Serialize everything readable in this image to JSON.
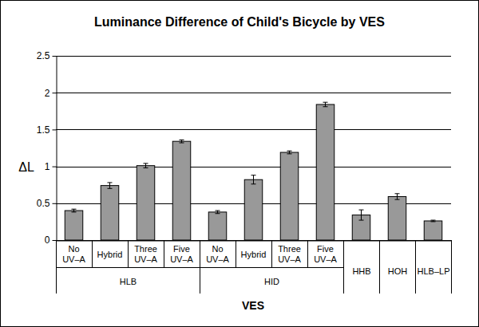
{
  "chart_data": {
    "type": "bar",
    "title": "Luminance Difference of Child's Bicycle by VES",
    "x_label": "VES",
    "y_label": "ΔL",
    "categories": [
      "No UV–A",
      "Hybrid",
      "Three UV–A",
      "Five UV–A",
      "No UV–A",
      "Hybrid",
      "Three UV–A",
      "Five UV–A",
      null,
      null,
      null
    ],
    "category_groups": [
      "HLB",
      "HLB",
      "HLB",
      "HLB",
      "HID",
      "HID",
      "HID",
      "HID",
      "HHB",
      "HOH",
      "HLB–LP"
    ],
    "values": [
      0.4,
      0.74,
      1.01,
      1.34,
      0.38,
      0.82,
      1.19,
      1.84,
      0.34,
      0.59,
      0.26
    ],
    "errors": [
      0.02,
      0.04,
      0.03,
      0.02,
      0.02,
      0.06,
      0.02,
      0.03,
      0.07,
      0.04,
      0.01
    ],
    "color": "#999999",
    "ylim": [
      0,
      2.5
    ],
    "yticks": [
      0,
      0.5,
      1,
      1.5,
      2,
      2.5
    ],
    "grid": true
  }
}
